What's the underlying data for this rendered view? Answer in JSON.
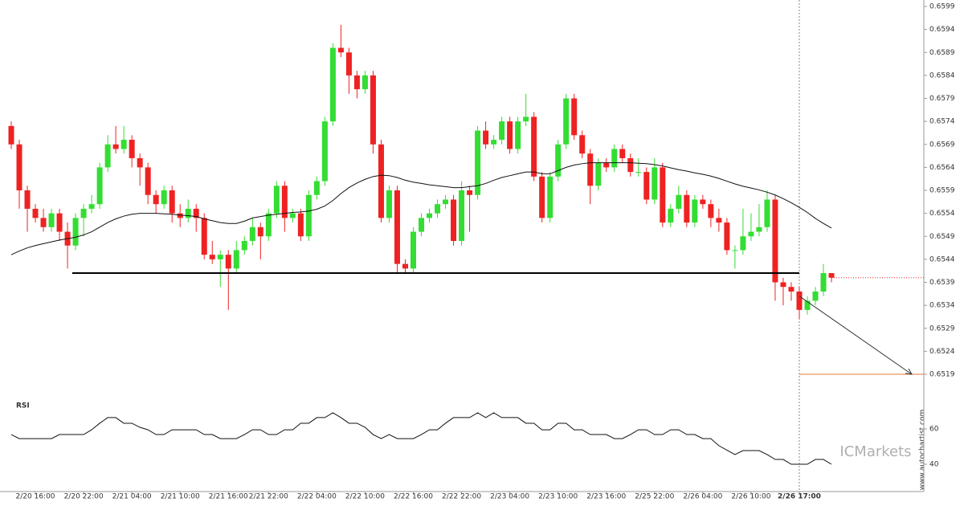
{
  "chart_data": {
    "type": "candlestick",
    "open": [
      0.6573,
      0.6569,
      0.6559,
      0.6555,
      0.6553,
      0.6551,
      0.6554,
      0.655,
      0.6547,
      0.6553,
      0.6555,
      0.6556,
      0.6564,
      0.6569,
      0.6568,
      0.657,
      0.6566,
      0.6564,
      0.6558,
      0.6556,
      0.6559,
      0.6554,
      0.6553,
      0.6555,
      0.6553,
      0.6545,
      0.6544,
      0.6545,
      0.6542,
      0.6546,
      0.6548,
      0.6551,
      0.6549,
      0.6554,
      0.656,
      0.6553,
      0.6554,
      0.6549,
      0.6558,
      0.6561,
      0.6574,
      0.659,
      0.6589,
      0.6584,
      0.6581,
      0.6584,
      0.6569,
      0.6553,
      0.6559,
      0.6543,
      0.6542,
      0.655,
      0.6553,
      0.6554,
      0.6556,
      0.6557,
      0.6548,
      0.6559,
      0.6558,
      0.6572,
      0.6569,
      0.657,
      0.6574,
      0.6568,
      0.6574,
      0.6575,
      0.6562,
      0.6553,
      0.6562,
      0.6569,
      0.6579,
      0.6571,
      0.6567,
      0.656,
      0.6565,
      0.6564,
      0.6568,
      0.6566,
      0.6563,
      0.6563,
      0.6557,
      0.6564,
      0.6552,
      0.6555,
      0.6558,
      0.6552,
      0.6557,
      0.6556,
      0.6553,
      0.6552,
      0.6546,
      0.6546,
      0.6549,
      0.655,
      0.6551,
      0.6557,
      0.6539,
      0.6538,
      0.6537,
      0.6533,
      0.6535,
      0.6537,
      0.6541
    ],
    "high": [
      0.6574,
      0.657,
      0.656,
      0.6556,
      0.6555,
      0.6555,
      0.6555,
      0.6552,
      0.6554,
      0.6556,
      0.6558,
      0.6565,
      0.6571,
      0.6573,
      0.6573,
      0.6571,
      0.6567,
      0.6565,
      0.6559,
      0.656,
      0.656,
      0.6556,
      0.6557,
      0.6556,
      0.6554,
      0.6548,
      0.6546,
      0.6546,
      0.6548,
      0.6549,
      0.6553,
      0.6552,
      0.6555,
      0.6561,
      0.6561,
      0.6555,
      0.6555,
      0.6559,
      0.6562,
      0.6575,
      0.6591,
      0.6595,
      0.659,
      0.6585,
      0.6585,
      0.6585,
      0.657,
      0.656,
      0.656,
      0.6544,
      0.6551,
      0.6554,
      0.6555,
      0.6557,
      0.6558,
      0.6558,
      0.6561,
      0.656,
      0.6573,
      0.6574,
      0.6571,
      0.6575,
      0.6575,
      0.6575,
      0.658,
      0.6576,
      0.6563,
      0.6563,
      0.657,
      0.658,
      0.658,
      0.6572,
      0.6568,
      0.6566,
      0.6566,
      0.6569,
      0.6569,
      0.6567,
      0.6566,
      0.6564,
      0.6566,
      0.6565,
      0.6556,
      0.656,
      0.6559,
      0.6558,
      0.6558,
      0.6557,
      0.6555,
      0.6553,
      0.6547,
      0.6555,
      0.6554,
      0.6556,
      0.6559,
      0.6558,
      0.654,
      0.6539,
      0.6538,
      0.6536,
      0.6538,
      0.6543,
      0.6541
    ],
    "low": [
      0.6568,
      0.6555,
      0.655,
      0.6552,
      0.655,
      0.655,
      0.6548,
      0.6542,
      0.6546,
      0.6549,
      0.6554,
      0.6555,
      0.6563,
      0.6567,
      0.6567,
      0.6564,
      0.656,
      0.6556,
      0.6554,
      0.6555,
      0.6552,
      0.6551,
      0.6552,
      0.655,
      0.6544,
      0.6543,
      0.6538,
      0.6533,
      0.6541,
      0.6545,
      0.6547,
      0.6544,
      0.6548,
      0.6553,
      0.655,
      0.6552,
      0.6548,
      0.6548,
      0.6557,
      0.656,
      0.6573,
      0.6588,
      0.658,
      0.6579,
      0.658,
      0.6567,
      0.6552,
      0.6552,
      0.6541,
      0.6541,
      0.6541,
      0.6549,
      0.6552,
      0.6553,
      0.6555,
      0.6547,
      0.6547,
      0.655,
      0.6557,
      0.6568,
      0.6568,
      0.6569,
      0.6567,
      0.6567,
      0.6573,
      0.6561,
      0.6552,
      0.6552,
      0.6561,
      0.6568,
      0.657,
      0.6566,
      0.6556,
      0.6559,
      0.6563,
      0.6563,
      0.6565,
      0.6562,
      0.6562,
      0.6556,
      0.6556,
      0.6551,
      0.6551,
      0.6554,
      0.6551,
      0.6551,
      0.6555,
      0.6551,
      0.655,
      0.6545,
      0.6542,
      0.6545,
      0.6548,
      0.6549,
      0.655,
      0.6535,
      0.6534,
      0.6535,
      0.6531,
      0.6532,
      0.6534,
      0.6536,
      0.6539
    ],
    "close": [
      0.6569,
      0.6559,
      0.6555,
      0.6553,
      0.6551,
      0.6554,
      0.655,
      0.6547,
      0.6553,
      0.6555,
      0.6556,
      0.6564,
      0.6569,
      0.6568,
      0.657,
      0.6566,
      0.6564,
      0.6558,
      0.6556,
      0.6559,
      0.6554,
      0.6553,
      0.6555,
      0.6553,
      0.6545,
      0.6544,
      0.6545,
      0.6542,
      0.6546,
      0.6548,
      0.6551,
      0.6549,
      0.6554,
      0.656,
      0.6553,
      0.6554,
      0.6549,
      0.6558,
      0.6561,
      0.6574,
      0.659,
      0.6589,
      0.6584,
      0.6581,
      0.6584,
      0.6569,
      0.6553,
      0.6559,
      0.6543,
      0.6542,
      0.655,
      0.6553,
      0.6554,
      0.6556,
      0.6557,
      0.6548,
      0.6559,
      0.6558,
      0.6572,
      0.6569,
      0.657,
      0.6574,
      0.6568,
      0.6574,
      0.6575,
      0.6562,
      0.6553,
      0.6562,
      0.6569,
      0.6579,
      0.6571,
      0.6567,
      0.656,
      0.6565,
      0.6564,
      0.6568,
      0.6566,
      0.6563,
      0.6563,
      0.6557,
      0.6564,
      0.6552,
      0.6555,
      0.6558,
      0.6552,
      0.6557,
      0.6556,
      0.6553,
      0.6552,
      0.6546,
      0.6546,
      0.6549,
      0.655,
      0.6551,
      0.6557,
      0.6539,
      0.6538,
      0.6537,
      0.6533,
      0.6535,
      0.6537,
      0.6541,
      0.654
    ],
    "ma": [
      0.6545,
      0.65458,
      0.65465,
      0.6547,
      0.65474,
      0.65478,
      0.65482,
      0.65485,
      0.65488,
      0.65493,
      0.655,
      0.6551,
      0.6552,
      0.65528,
      0.65534,
      0.65538,
      0.6554,
      0.6554,
      0.6554,
      0.65539,
      0.65538,
      0.65536,
      0.65535,
      0.65533,
      0.65528,
      0.65524,
      0.6552,
      0.65518,
      0.65518,
      0.65523,
      0.6553,
      0.65533,
      0.65536,
      0.65538,
      0.6554,
      0.65542,
      0.65543,
      0.65545,
      0.65549,
      0.65556,
      0.65568,
      0.65583,
      0.65596,
      0.65606,
      0.65614,
      0.6562,
      0.65623,
      0.65622,
      0.65618,
      0.65612,
      0.65608,
      0.65605,
      0.65602,
      0.656,
      0.65598,
      0.65596,
      0.65596,
      0.65598,
      0.656,
      0.65605,
      0.65612,
      0.65618,
      0.65622,
      0.65626,
      0.6563,
      0.6563,
      0.65626,
      0.65626,
      0.65633,
      0.6564,
      0.65645,
      0.65648,
      0.6565,
      0.6565,
      0.6565,
      0.6565,
      0.6565,
      0.6565,
      0.65649,
      0.65648,
      0.65646,
      0.65643,
      0.65639,
      0.65635,
      0.65632,
      0.65628,
      0.65625,
      0.65621,
      0.65616,
      0.6561,
      0.65604,
      0.65599,
      0.65595,
      0.65591,
      0.65586,
      0.6558,
      0.65572,
      0.65563,
      0.65553,
      0.65542,
      0.65529,
      0.65518,
      0.65508
    ],
    "up_color": "#33dd33",
    "down_color": "#ee2222",
    "ma_color": "#111111",
    "ylim": [
      0.6515,
      0.66
    ],
    "yticks": [
      0.6519,
      0.6524,
      0.6529,
      0.6534,
      0.6539,
      0.6544,
      0.6549,
      0.6554,
      0.6559,
      0.6564,
      0.6569,
      0.6574,
      0.6579,
      0.6584,
      0.6589,
      0.6594,
      0.6599
    ],
    "xticks": [
      {
        "value": 3,
        "label": "2/20 16:00"
      },
      {
        "value": 9,
        "label": "2/20 22:00"
      },
      {
        "value": 15,
        "label": "2/21 04:00"
      },
      {
        "value": 21,
        "label": "2/21 10:00"
      },
      {
        "value": 27,
        "label": "2/21 16:00"
      },
      {
        "value": 32,
        "label": "2/21 22:00"
      },
      {
        "value": 38,
        "label": "2/22 04:00"
      },
      {
        "value": 44,
        "label": "2/22 10:00"
      },
      {
        "value": 50,
        "label": "2/22 16:00"
      },
      {
        "value": 56,
        "label": "2/22 22:00"
      },
      {
        "value": 62,
        "label": "2/23 04:00"
      },
      {
        "value": 68,
        "label": "2/23 10:00"
      },
      {
        "value": 74,
        "label": "2/23 16:00"
      },
      {
        "value": 80,
        "label": "2/25 22:00"
      },
      {
        "value": 86,
        "label": "2/26 04:00"
      },
      {
        "value": 92,
        "label": "2/26 10:00"
      },
      {
        "value": 98,
        "label": "2/26 17:00"
      }
    ],
    "support_level": 0.6541,
    "forecast": {
      "from": 0.6536,
      "to": 0.6519,
      "color": "#e07b39"
    },
    "rsi": {
      "label": "RSI",
      "ylim": [
        20,
        80
      ],
      "yticks": [
        40,
        60
      ],
      "values": [
        56.8,
        54.5,
        54.5,
        54.5,
        54.5,
        54.5,
        56.8,
        56.8,
        56.8,
        56.8,
        59.5,
        63.2,
        66.4,
        66.4,
        63.2,
        63.2,
        60.9,
        59.5,
        56.8,
        56.8,
        59.5,
        59.5,
        59.5,
        59.5,
        56.8,
        56.8,
        54.5,
        54.5,
        54.5,
        56.8,
        59.5,
        59.5,
        56.8,
        56.8,
        59.5,
        59.5,
        63.2,
        63.2,
        66.4,
        66.4,
        69.1,
        66.4,
        63.2,
        63.2,
        60.9,
        56.8,
        54.5,
        56.8,
        54.5,
        54.5,
        54.5,
        56.8,
        59.5,
        59.5,
        63.2,
        66.4,
        66.4,
        66.4,
        69.1,
        66.4,
        69.1,
        66.4,
        66.4,
        66.4,
        63.2,
        63.2,
        59.5,
        59.5,
        63.2,
        63.2,
        59.5,
        59.5,
        56.8,
        56.8,
        56.8,
        54.5,
        54.5,
        56.8,
        59.5,
        59.5,
        56.8,
        56.8,
        59.5,
        59.5,
        56.8,
        56.8,
        54.5,
        54.5,
        50.5,
        48,
        45.5,
        47.7,
        47.7,
        47.7,
        45.5,
        42.7,
        42.7,
        40,
        40,
        40,
        42.7,
        42.7,
        40
      ]
    },
    "watermark": "ICMarkets",
    "source": "www.autochartist.com"
  }
}
